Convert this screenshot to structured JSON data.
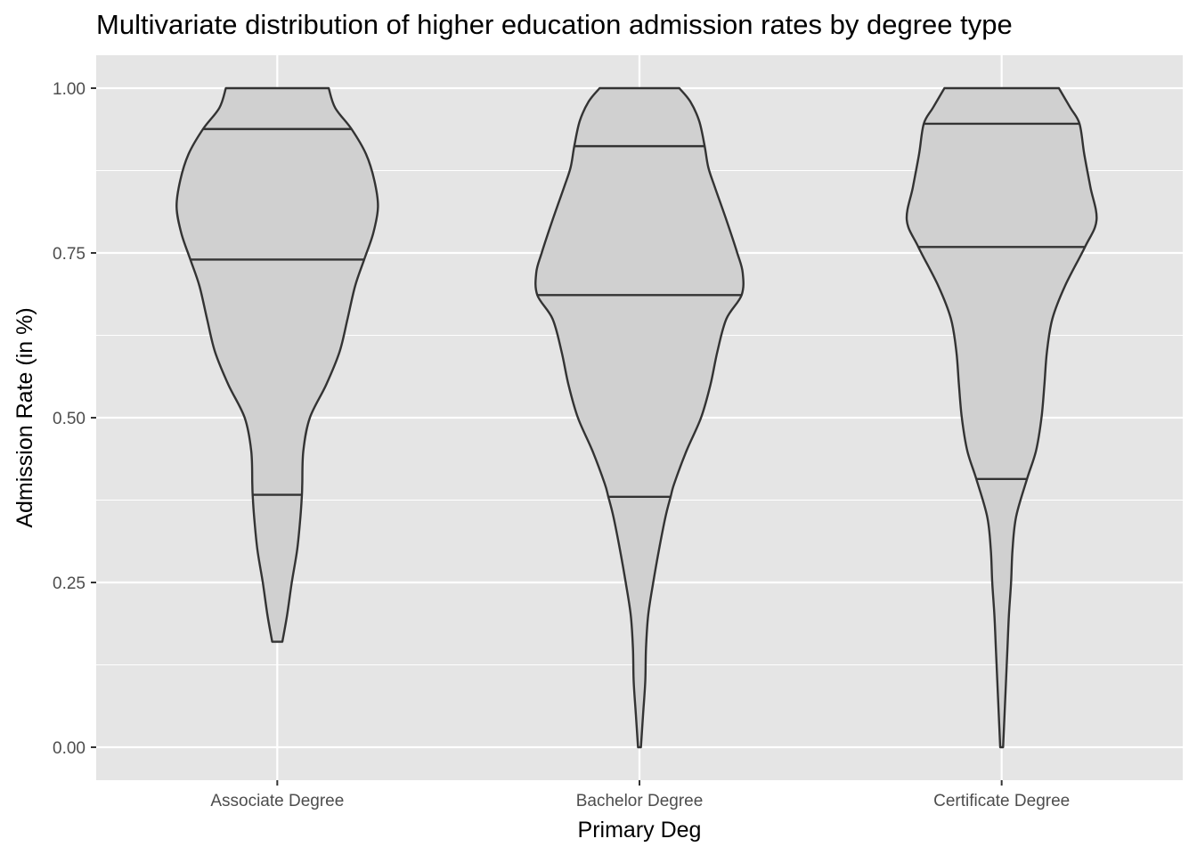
{
  "chart_data": {
    "type": "violin",
    "title": "Multivariate distribution of higher education admission rates by degree type",
    "xlabel": "Primary Deg",
    "ylabel": "Admission Rate (in %)",
    "ylim": [
      -0.05,
      1.05
    ],
    "y_ticks": [
      0.0,
      0.25,
      0.5,
      0.75,
      1.0
    ],
    "y_tick_labels": [
      "0.00",
      "0.25",
      "0.50",
      "0.75",
      "1.00"
    ],
    "grid": true,
    "fill_color": "#d0d0d0",
    "outline_color": "#333333",
    "panel_color": "#e5e5e5",
    "gridline_color": "#ffffff",
    "categories": [
      "Associate Degree",
      "Bachelor Degree",
      "Certificate Degree"
    ],
    "series": [
      {
        "category": "Associate Degree",
        "quantiles": [
          0.383,
          0.74,
          0.938
        ],
        "profile": [
          [
            0.16,
            0.014
          ],
          [
            0.2,
            0.027
          ],
          [
            0.25,
            0.04
          ],
          [
            0.3,
            0.055
          ],
          [
            0.35,
            0.064
          ],
          [
            0.383,
            0.068
          ],
          [
            0.4,
            0.069
          ],
          [
            0.45,
            0.072
          ],
          [
            0.5,
            0.09
          ],
          [
            0.55,
            0.135
          ],
          [
            0.6,
            0.172
          ],
          [
            0.65,
            0.194
          ],
          [
            0.7,
            0.215
          ],
          [
            0.74,
            0.24
          ],
          [
            0.78,
            0.265
          ],
          [
            0.82,
            0.278
          ],
          [
            0.86,
            0.268
          ],
          [
            0.9,
            0.245
          ],
          [
            0.938,
            0.205
          ],
          [
            0.97,
            0.16
          ],
          [
            1.0,
            0.142
          ]
        ]
      },
      {
        "category": "Bachelor Degree",
        "quantiles": [
          0.38,
          0.686,
          0.912
        ],
        "profile": [
          [
            0.0,
            0.004
          ],
          [
            0.05,
            0.01
          ],
          [
            0.1,
            0.016
          ],
          [
            0.15,
            0.018
          ],
          [
            0.2,
            0.024
          ],
          [
            0.25,
            0.038
          ],
          [
            0.3,
            0.054
          ],
          [
            0.35,
            0.072
          ],
          [
            0.38,
            0.086
          ],
          [
            0.4,
            0.096
          ],
          [
            0.45,
            0.13
          ],
          [
            0.5,
            0.17
          ],
          [
            0.55,
            0.196
          ],
          [
            0.6,
            0.215
          ],
          [
            0.65,
            0.24
          ],
          [
            0.686,
            0.282
          ],
          [
            0.72,
            0.285
          ],
          [
            0.75,
            0.27
          ],
          [
            0.8,
            0.24
          ],
          [
            0.85,
            0.208
          ],
          [
            0.88,
            0.19
          ],
          [
            0.912,
            0.18
          ],
          [
            0.95,
            0.165
          ],
          [
            0.98,
            0.14
          ],
          [
            1.0,
            0.11
          ]
        ]
      },
      {
        "category": "Certificate Degree",
        "quantiles": [
          0.407,
          0.759,
          0.946
        ],
        "profile": [
          [
            0.0,
            0.004
          ],
          [
            0.05,
            0.008
          ],
          [
            0.1,
            0.012
          ],
          [
            0.15,
            0.016
          ],
          [
            0.2,
            0.02
          ],
          [
            0.25,
            0.026
          ],
          [
            0.3,
            0.03
          ],
          [
            0.35,
            0.04
          ],
          [
            0.407,
            0.07
          ],
          [
            0.45,
            0.095
          ],
          [
            0.5,
            0.11
          ],
          [
            0.55,
            0.118
          ],
          [
            0.6,
            0.125
          ],
          [
            0.65,
            0.14
          ],
          [
            0.7,
            0.175
          ],
          [
            0.759,
            0.23
          ],
          [
            0.8,
            0.262
          ],
          [
            0.85,
            0.245
          ],
          [
            0.9,
            0.228
          ],
          [
            0.946,
            0.215
          ],
          [
            0.97,
            0.19
          ],
          [
            1.0,
            0.158
          ]
        ]
      }
    ]
  }
}
